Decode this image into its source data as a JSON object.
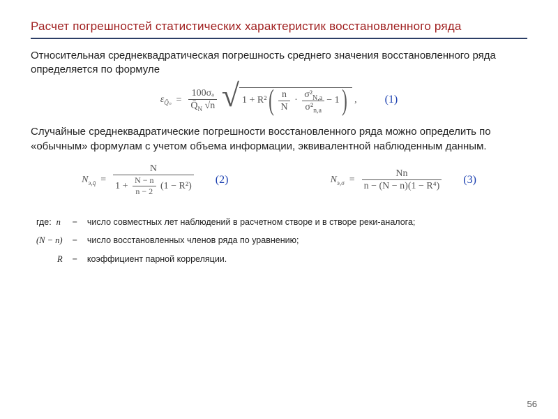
{
  "colors": {
    "title": "#a02020",
    "rule": "#2c3e66",
    "eq_num": "#1a3fb0",
    "text": "#222222",
    "math": "#555555",
    "background": "#ffffff"
  },
  "typography": {
    "body_family": "Arial",
    "math_family": "Times New Roman",
    "title_size_pt": 17,
    "body_size_pt": 15,
    "where_size_pt": 12.5,
    "math_size_pt": 14
  },
  "title": "Расчет погрешностей статистических характеристик восстановленного ряда",
  "para1": "Относительная среднеквадратическая погрешность среднего значения восстановленного ряда определяется по формуле",
  "para2": "Случайные среднеквадратические погрешности восстановленного ряда можно определить по «обычным» формулам с учетом объема информации, эквивалентной наблюденным данным.",
  "eq1": {
    "num": "(1)",
    "lhs_symbol": "ε",
    "lhs_sub": "Q̄ₙ",
    "frac_num": "100σₐ",
    "frac_den_left": "Q̄",
    "frac_den_sub": "N",
    "frac_den_right": "√n",
    "rad_lead": "1 + R²",
    "inner_num_top": "σ²",
    "inner_num_top_sub": "N,a",
    "inner_num_bot": "σ²",
    "inner_num_bot_sub": "n,a",
    "inner_ratio_left": "n",
    "inner_ratio_right": "N",
    "inner_tail": " − 1",
    "tail_punct": ","
  },
  "eq2": {
    "num": "(2)",
    "lhs_symbol": "N",
    "lhs_sub": "э,q̄",
    "big_num": "N",
    "den_lead": "1 + ",
    "den_frac_num": "N − n",
    "den_frac_den": "n − 2",
    "den_tail": "(1 − R²)"
  },
  "eq3": {
    "num": "(3)",
    "lhs_symbol": "N",
    "lhs_sub": "э,σ",
    "num_top": "Nn",
    "den": "n − (N − n)(1 − R⁴)"
  },
  "where_label": "где:",
  "where": [
    {
      "sym": "n",
      "desc": "число совместных лет наблюдений в расчетном створе и в створе реки-аналога;"
    },
    {
      "sym": "(N − n)",
      "desc": "число восстановленных членов ряда по уравнению;"
    },
    {
      "sym": "R",
      "desc": "коэффициент парной корреляции."
    }
  ],
  "dash": "−",
  "page_number": "56"
}
